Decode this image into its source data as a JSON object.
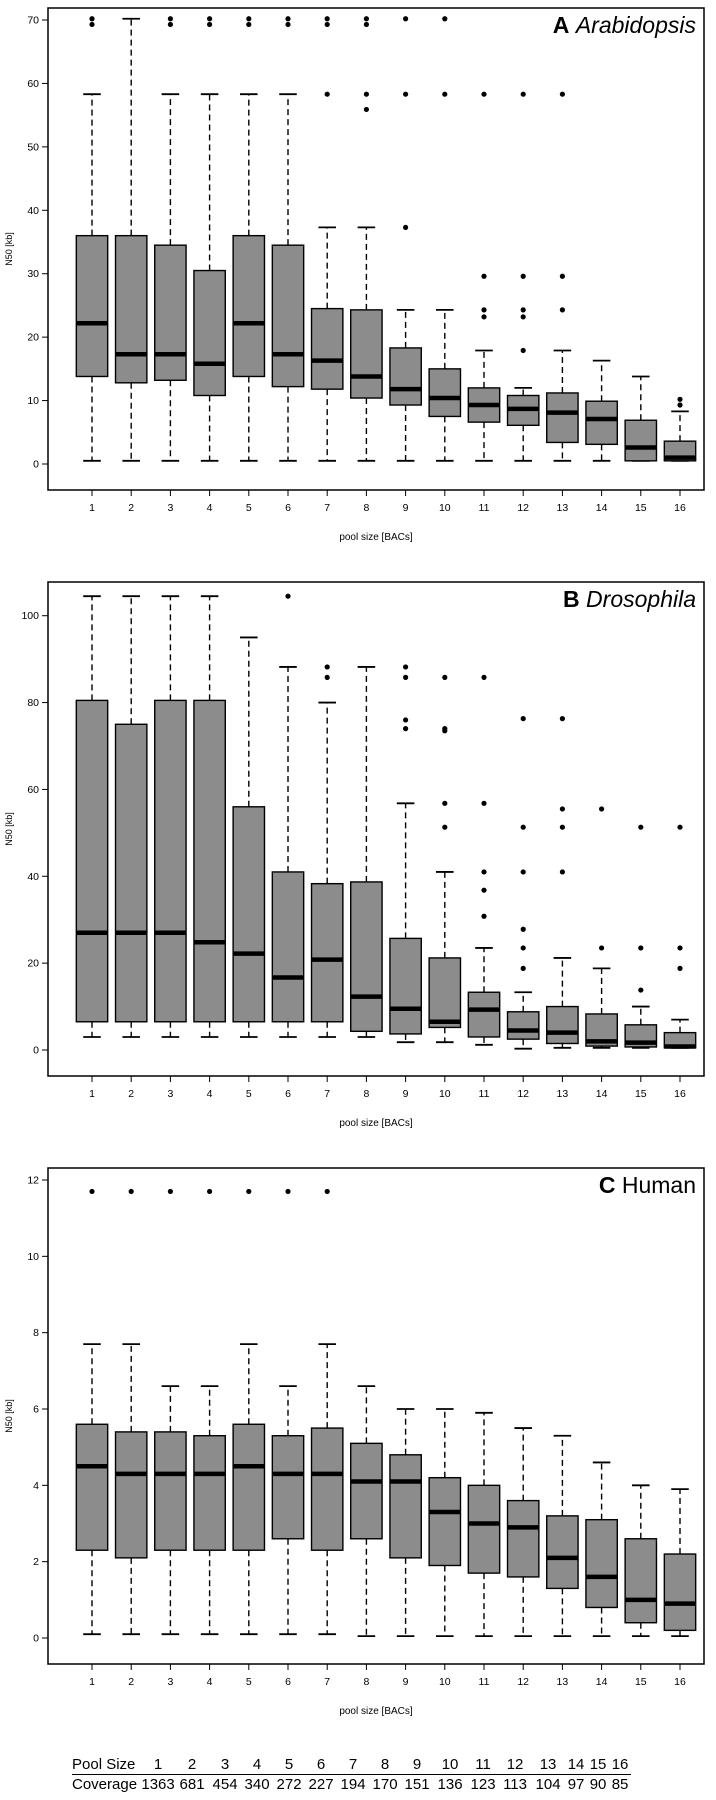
{
  "chart_data": [
    {
      "type": "box",
      "panel_letter": "A",
      "organism": "Arabidopsis",
      "italic": true,
      "xlabel": "pool size [BACs]",
      "ylabel": "N50 [kb]",
      "ylim": [
        0,
        70
      ],
      "yticks": [
        0,
        10,
        20,
        30,
        40,
        50,
        60,
        70
      ],
      "categories": [
        "1",
        "2",
        "3",
        "4",
        "5",
        "6",
        "7",
        "8",
        "9",
        "10",
        "11",
        "12",
        "13",
        "14",
        "15",
        "16"
      ],
      "boxes": [
        {
          "min": 0.5,
          "q1": 13.8,
          "median": 22.2,
          "q3": 36.0,
          "max": 58.3,
          "outliers": [
            69.3,
            70.2
          ]
        },
        {
          "min": 0.5,
          "q1": 12.8,
          "median": 17.3,
          "q3": 36.0,
          "max": 70.2,
          "outliers": []
        },
        {
          "min": 0.5,
          "q1": 13.2,
          "median": 17.3,
          "q3": 34.5,
          "max": 58.3,
          "outliers": [
            69.3,
            70.2
          ]
        },
        {
          "min": 0.5,
          "q1": 10.8,
          "median": 15.8,
          "q3": 30.5,
          "max": 58.3,
          "outliers": [
            69.3,
            70.2
          ]
        },
        {
          "min": 0.5,
          "q1": 13.8,
          "median": 22.2,
          "q3": 36.0,
          "max": 58.3,
          "outliers": [
            69.3,
            70.2
          ]
        },
        {
          "min": 0.5,
          "q1": 12.2,
          "median": 17.3,
          "q3": 34.5,
          "max": 58.3,
          "outliers": [
            69.3,
            70.2
          ]
        },
        {
          "min": 0.5,
          "q1": 11.8,
          "median": 16.3,
          "q3": 24.5,
          "max": 37.3,
          "outliers": [
            58.3,
            69.3,
            70.2
          ]
        },
        {
          "min": 0.5,
          "q1": 10.4,
          "median": 13.8,
          "q3": 24.3,
          "max": 37.3,
          "outliers": [
            55.9,
            58.3,
            69.3,
            70.2
          ]
        },
        {
          "min": 0.5,
          "q1": 9.3,
          "median": 11.8,
          "q3": 18.3,
          "max": 24.3,
          "outliers": [
            37.3,
            58.3,
            70.2
          ]
        },
        {
          "min": 0.5,
          "q1": 7.5,
          "median": 10.4,
          "q3": 15.0,
          "max": 24.3,
          "outliers": [
            58.3,
            70.2
          ]
        },
        {
          "min": 0.5,
          "q1": 6.6,
          "median": 9.3,
          "q3": 12.0,
          "max": 17.9,
          "outliers": [
            23.2,
            24.3,
            29.6,
            58.3
          ]
        },
        {
          "min": 0.5,
          "q1": 6.1,
          "median": 8.7,
          "q3": 10.8,
          "max": 12.0,
          "outliers": [
            17.9,
            23.2,
            24.3,
            29.6,
            58.3
          ]
        },
        {
          "min": 0.5,
          "q1": 3.4,
          "median": 8.1,
          "q3": 11.2,
          "max": 17.9,
          "outliers": [
            24.3,
            29.6,
            58.3
          ]
        },
        {
          "min": 0.5,
          "q1": 3.1,
          "median": 7.1,
          "q3": 9.9,
          "max": 16.3,
          "outliers": []
        },
        {
          "min": 0.5,
          "q1": 0.5,
          "median": 2.6,
          "q3": 6.9,
          "max": 13.8,
          "outliers": []
        },
        {
          "min": 0.5,
          "q1": 0.5,
          "median": 1.0,
          "q3": 3.6,
          "max": 8.3,
          "outliers": [
            9.3,
            10.2
          ]
        }
      ]
    },
    {
      "type": "box",
      "panel_letter": "B",
      "organism": "Drosophila",
      "italic": true,
      "xlabel": "pool size [BACs]",
      "ylabel": "N50 [kb]",
      "ylim": [
        0,
        105
      ],
      "yticks": [
        0,
        20,
        40,
        60,
        80,
        100
      ],
      "categories": [
        "1",
        "2",
        "3",
        "4",
        "5",
        "6",
        "7",
        "8",
        "9",
        "10",
        "11",
        "12",
        "13",
        "14",
        "15",
        "16"
      ],
      "boxes": [
        {
          "min": 3.0,
          "q1": 6.5,
          "median": 27.0,
          "q3": 80.5,
          "max": 104.5,
          "outliers": []
        },
        {
          "min": 3.0,
          "q1": 6.5,
          "median": 27.0,
          "q3": 75.0,
          "max": 104.5,
          "outliers": []
        },
        {
          "min": 3.0,
          "q1": 6.5,
          "median": 27.0,
          "q3": 80.5,
          "max": 104.5,
          "outliers": []
        },
        {
          "min": 3.0,
          "q1": 6.5,
          "median": 24.8,
          "q3": 80.5,
          "max": 104.5,
          "outliers": []
        },
        {
          "min": 3.0,
          "q1": 6.5,
          "median": 22.2,
          "q3": 56.0,
          "max": 95.0,
          "outliers": []
        },
        {
          "min": 3.0,
          "q1": 6.5,
          "median": 16.7,
          "q3": 41.0,
          "max": 88.2,
          "outliers": [
            104.5
          ]
        },
        {
          "min": 3.0,
          "q1": 6.5,
          "median": 20.8,
          "q3": 38.3,
          "max": 80.0,
          "outliers": [
            85.8,
            88.2
          ]
        },
        {
          "min": 3.0,
          "q1": 4.3,
          "median": 12.3,
          "q3": 38.7,
          "max": 88.2,
          "outliers": []
        },
        {
          "min": 1.8,
          "q1": 3.7,
          "median": 9.5,
          "q3": 25.7,
          "max": 56.8,
          "outliers": [
            74.0,
            76.0,
            85.8,
            88.2
          ]
        },
        {
          "min": 1.8,
          "q1": 5.2,
          "median": 6.5,
          "q3": 21.2,
          "max": 41.0,
          "outliers": [
            51.3,
            56.8,
            73.5,
            74.0,
            85.8
          ]
        },
        {
          "min": 1.2,
          "q1": 3.0,
          "median": 9.3,
          "q3": 13.3,
          "max": 23.5,
          "outliers": [
            30.8,
            36.8,
            41.0,
            56.8,
            85.8
          ]
        },
        {
          "min": 0.3,
          "q1": 2.5,
          "median": 4.5,
          "q3": 8.8,
          "max": 13.3,
          "outliers": [
            18.8,
            23.5,
            27.8,
            41.0,
            51.3,
            76.3
          ]
        },
        {
          "min": 0.5,
          "q1": 1.5,
          "median": 4.0,
          "q3": 10.0,
          "max": 21.2,
          "outliers": [
            41.0,
            51.3,
            55.5,
            76.3
          ]
        },
        {
          "min": 0.5,
          "q1": 0.9,
          "median": 2.0,
          "q3": 8.3,
          "max": 18.8,
          "outliers": [
            23.5,
            55.5
          ]
        },
        {
          "min": 0.5,
          "q1": 0.7,
          "median": 1.7,
          "q3": 5.8,
          "max": 10.0,
          "outliers": [
            13.8,
            23.5,
            51.3
          ]
        },
        {
          "min": 0.5,
          "q1": 0.5,
          "median": 0.8,
          "q3": 4.0,
          "max": 7.0,
          "outliers": [
            18.8,
            23.5,
            51.3
          ]
        }
      ]
    },
    {
      "type": "box",
      "panel_letter": "C",
      "organism": "Human",
      "italic": false,
      "xlabel": "pool size [BACs]",
      "ylabel": "N50 [kb]",
      "ylim": [
        0,
        12
      ],
      "yticks": [
        0,
        2,
        4,
        6,
        8,
        10,
        12
      ],
      "categories": [
        "1",
        "2",
        "3",
        "4",
        "5",
        "6",
        "7",
        "8",
        "9",
        "10",
        "11",
        "12",
        "13",
        "14",
        "15",
        "16"
      ],
      "boxes": [
        {
          "min": 0.1,
          "q1": 2.3,
          "median": 4.5,
          "q3": 5.6,
          "max": 7.7,
          "outliers": [
            11.7
          ]
        },
        {
          "min": 0.1,
          "q1": 2.1,
          "median": 4.3,
          "q3": 5.4,
          "max": 7.7,
          "outliers": [
            11.7
          ]
        },
        {
          "min": 0.1,
          "q1": 2.3,
          "median": 4.3,
          "q3": 5.4,
          "max": 6.6,
          "outliers": [
            11.7
          ]
        },
        {
          "min": 0.1,
          "q1": 2.3,
          "median": 4.3,
          "q3": 5.3,
          "max": 6.6,
          "outliers": [
            11.7
          ]
        },
        {
          "min": 0.1,
          "q1": 2.3,
          "median": 4.5,
          "q3": 5.6,
          "max": 7.7,
          "outliers": [
            11.7
          ]
        },
        {
          "min": 0.1,
          "q1": 2.6,
          "median": 4.3,
          "q3": 5.3,
          "max": 6.6,
          "outliers": [
            11.7
          ]
        },
        {
          "min": 0.1,
          "q1": 2.3,
          "median": 4.3,
          "q3": 5.5,
          "max": 7.7,
          "outliers": [
            11.7
          ]
        },
        {
          "min": 0.05,
          "q1": 2.6,
          "median": 4.1,
          "q3": 5.1,
          "max": 6.6,
          "outliers": []
        },
        {
          "min": 0.05,
          "q1": 2.1,
          "median": 4.1,
          "q3": 4.8,
          "max": 6.0,
          "outliers": []
        },
        {
          "min": 0.05,
          "q1": 1.9,
          "median": 3.3,
          "q3": 4.2,
          "max": 6.0,
          "outliers": []
        },
        {
          "min": 0.05,
          "q1": 1.7,
          "median": 3.0,
          "q3": 4.0,
          "max": 5.9,
          "outliers": []
        },
        {
          "min": 0.05,
          "q1": 1.6,
          "median": 2.9,
          "q3": 3.6,
          "max": 5.5,
          "outliers": []
        },
        {
          "min": 0.05,
          "q1": 1.3,
          "median": 2.1,
          "q3": 3.2,
          "max": 5.3,
          "outliers": []
        },
        {
          "min": 0.05,
          "q1": 0.8,
          "median": 1.6,
          "q3": 3.1,
          "max": 4.6,
          "outliers": []
        },
        {
          "min": 0.05,
          "q1": 0.4,
          "median": 1.0,
          "q3": 2.6,
          "max": 4.0,
          "outliers": []
        },
        {
          "min": 0.05,
          "q1": 0.2,
          "median": 0.9,
          "q3": 2.2,
          "max": 3.9,
          "outliers": []
        }
      ]
    }
  ],
  "coverage_table": {
    "row1_label": "Pool Size",
    "row2_label": "Coverage",
    "pool_sizes": [
      "1",
      "2",
      "3",
      "4",
      "5",
      "6",
      "7",
      "8",
      "9",
      "10",
      "11",
      "12",
      "13",
      "14",
      "15",
      "16"
    ],
    "coverage": [
      "1363",
      "681",
      "454",
      "340",
      "272",
      "227",
      "194",
      "170",
      "151",
      "136",
      "123",
      "113",
      "104",
      "97",
      "90",
      "85"
    ]
  },
  "colors": {
    "box_fill": "#8c8c8c",
    "stroke": "#000000",
    "background": "#ffffff"
  }
}
